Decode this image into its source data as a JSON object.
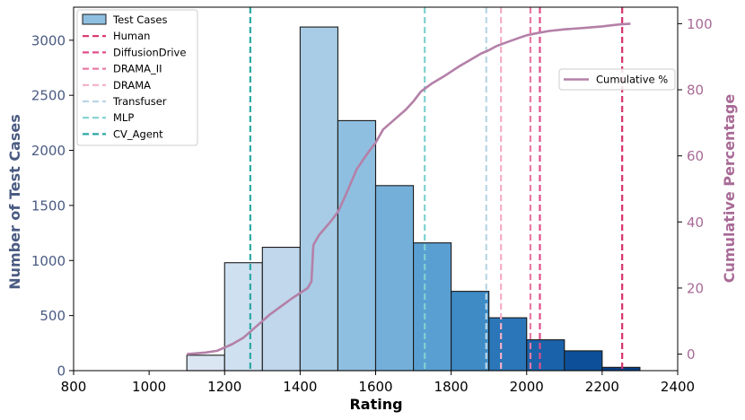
{
  "chart_data": {
    "type": "bar",
    "xlabel": "Rating",
    "ylabel": "Number of Test Cases",
    "y2label": "Cumulative Percentage",
    "xlim": [
      800,
      2400
    ],
    "ylim": [
      0,
      3300
    ],
    "y2lim": [
      -5,
      105
    ],
    "xticks": [
      "800",
      "1000",
      "1200",
      "1400",
      "1600",
      "1800",
      "2000",
      "2200",
      "2400"
    ],
    "yticks": [
      "0",
      "500",
      "1000",
      "1500",
      "2000",
      "2500",
      "3000"
    ],
    "y2ticks": [
      "0",
      "20",
      "40",
      "60",
      "80",
      "100"
    ],
    "bins": [
      {
        "x0": 1100,
        "x1": 1200,
        "count": 140,
        "color": "#dbe6f3"
      },
      {
        "x0": 1200,
        "x1": 1300,
        "count": 980,
        "color": "#cfe0f1"
      },
      {
        "x0": 1300,
        "x1": 1400,
        "count": 1120,
        "color": "#c0d7ec"
      },
      {
        "x0": 1400,
        "x1": 1500,
        "count": 3120,
        "color": "#a8cce5"
      },
      {
        "x0": 1500,
        "x1": 1600,
        "count": 2270,
        "color": "#8fbfe0"
      },
      {
        "x0": 1600,
        "x1": 1700,
        "count": 1680,
        "color": "#74afd9"
      },
      {
        "x0": 1700,
        "x1": 1800,
        "count": 1160,
        "color": "#5a9fd2"
      },
      {
        "x0": 1800,
        "x1": 1900,
        "count": 720,
        "color": "#3f8bc6"
      },
      {
        "x0": 1900,
        "x1": 2000,
        "count": 480,
        "color": "#2a76b8"
      },
      {
        "x0": 2000,
        "x1": 2100,
        "count": 280,
        "color": "#1a62a9"
      },
      {
        "x0": 2100,
        "x1": 2200,
        "count": 180,
        "color": "#0d5099"
      },
      {
        "x0": 2200,
        "x1": 2300,
        "count": 30,
        "color": "#083f85"
      }
    ],
    "cumulative": {
      "name": "Cumulative %",
      "color": "#b480a8",
      "x": [
        1100,
        1150,
        1180,
        1200,
        1220,
        1250,
        1270,
        1300,
        1320,
        1350,
        1380,
        1400,
        1420,
        1430,
        1435,
        1450,
        1480,
        1500,
        1520,
        1550,
        1580,
        1600,
        1620,
        1650,
        1680,
        1700,
        1720,
        1750,
        1780,
        1800,
        1820,
        1850,
        1880,
        1900,
        1920,
        1950,
        1980,
        2000,
        2030,
        2060,
        2100,
        2150,
        2200,
        2230,
        2250,
        2275
      ],
      "y": [
        0,
        0.5,
        1,
        2,
        3,
        5,
        7,
        10,
        12,
        14.5,
        17,
        18.5,
        20,
        22,
        33,
        36,
        40,
        43,
        48,
        56,
        61,
        64,
        68,
        71,
        74,
        76.5,
        79.5,
        82,
        84,
        85.5,
        87,
        89,
        91,
        92,
        93.2,
        94.5,
        95.7,
        96.5,
        97.2,
        97.8,
        98.3,
        98.7,
        99.2,
        99.6,
        99.8,
        100
      ]
    },
    "vlines": [
      {
        "name": "Human",
        "x": 2253,
        "color": "#d6326d"
      },
      {
        "name": "DiffusionDrive",
        "x": 2035,
        "color": "#e04d8a"
      },
      {
        "name": "DRAMA_II",
        "x": 2010,
        "color": "#e87ba6"
      },
      {
        "name": "DRAMA",
        "x": 1932,
        "color": "#f4aec8"
      },
      {
        "name": "Transfuser",
        "x": 1893,
        "color": "#b9d6e6"
      },
      {
        "name": "MLP",
        "x": 1730,
        "color": "#7fd1cf"
      },
      {
        "name": "CV_Agent",
        "x": 1268,
        "color": "#2ca8a3"
      }
    ],
    "legend_main": {
      "hist_label": "Test Cases",
      "position": "top-left"
    },
    "legend_right": {
      "position": "upper-right"
    },
    "colors": {
      "left_axis": "#4a5b82",
      "right_axis": "#a86a96"
    }
  }
}
